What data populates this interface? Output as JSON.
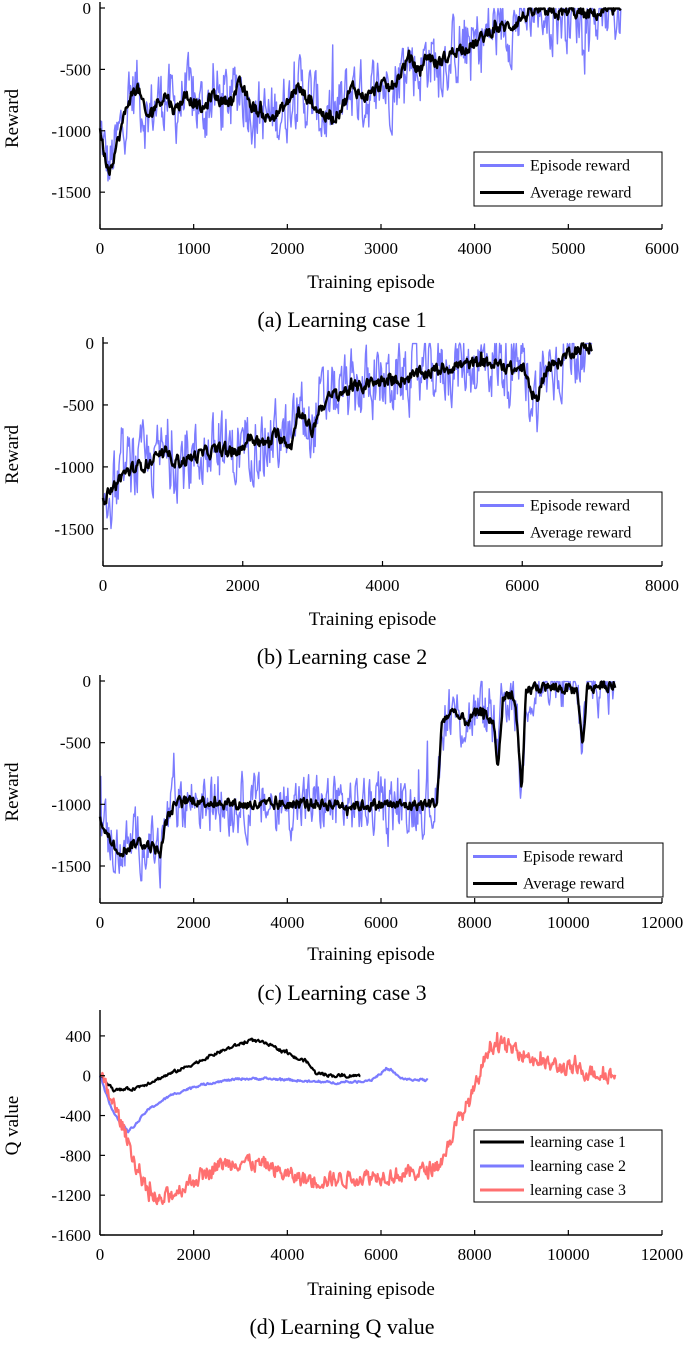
{
  "chart_data": [
    {
      "type": "line",
      "caption": "(a) Learning case 1",
      "xlabel": "Training episode",
      "ylabel": "Reward",
      "xlim": [
        0,
        6000
      ],
      "ylim": [
        -1800,
        0
      ],
      "xticks": [
        0,
        1000,
        2000,
        3000,
        4000,
        5000,
        6000
      ],
      "yticks": [
        0,
        -500,
        -1000,
        -1500
      ],
      "legend_position": "lower-right",
      "series": [
        {
          "name": "Episode reward",
          "color": "#7b7bff",
          "noise": 240,
          "x": [
            0,
            50,
            100,
            200,
            300,
            400,
            500,
            600,
            700,
            800,
            900,
            1000,
            1100,
            1200,
            1300,
            1400,
            1500,
            1600,
            1700,
            1800,
            1900,
            2000,
            2100,
            2200,
            2300,
            2400,
            2500,
            2600,
            2700,
            2800,
            2900,
            3000,
            3100,
            3200,
            3300,
            3400,
            3500,
            3600,
            3700,
            3800,
            3900,
            4000,
            4100,
            4200,
            4300,
            4400,
            4500,
            4600,
            4700,
            4800,
            4900,
            5000,
            5100,
            5200,
            5300,
            5400,
            5560
          ],
          "values": [
            -980,
            -1200,
            -1320,
            -1060,
            -760,
            -640,
            -900,
            -780,
            -700,
            -840,
            -720,
            -760,
            -840,
            -700,
            -760,
            -740,
            -620,
            -780,
            -850,
            -900,
            -860,
            -780,
            -640,
            -720,
            -800,
            -880,
            -900,
            -780,
            -640,
            -720,
            -700,
            -620,
            -660,
            -540,
            -400,
            -520,
            -380,
            -460,
            -400,
            -340,
            -320,
            -300,
            -230,
            -170,
            -160,
            -140,
            -80,
            -35,
            -25,
            -55,
            -45,
            -30,
            -40,
            -60,
            -45,
            -35,
            -25
          ]
        },
        {
          "name": "Average reward",
          "color": "#000000",
          "noise": 45,
          "x": [
            0,
            50,
            100,
            200,
            300,
            400,
            500,
            600,
            700,
            800,
            900,
            1000,
            1100,
            1200,
            1300,
            1400,
            1500,
            1600,
            1700,
            1800,
            1900,
            2000,
            2100,
            2200,
            2300,
            2400,
            2500,
            2600,
            2700,
            2800,
            2900,
            3000,
            3100,
            3200,
            3300,
            3400,
            3500,
            3600,
            3700,
            3800,
            3900,
            4000,
            4100,
            4200,
            4300,
            4400,
            4500,
            4600,
            4700,
            4800,
            4900,
            5000,
            5100,
            5200,
            5300,
            5400,
            5560
          ],
          "values": [
            -980,
            -1200,
            -1320,
            -1060,
            -760,
            -640,
            -900,
            -780,
            -700,
            -840,
            -720,
            -760,
            -840,
            -700,
            -760,
            -740,
            -620,
            -780,
            -850,
            -900,
            -860,
            -780,
            -640,
            -720,
            -800,
            -880,
            -900,
            -780,
            -640,
            -720,
            -700,
            -620,
            -660,
            -540,
            -400,
            -520,
            -380,
            -460,
            -400,
            -340,
            -320,
            -300,
            -230,
            -170,
            -160,
            -140,
            -80,
            -35,
            -25,
            -55,
            -45,
            -30,
            -40,
            -60,
            -45,
            -35,
            -25
          ]
        }
      ]
    },
    {
      "type": "line",
      "caption": "(b) Learning case 2",
      "xlabel": "Training episode",
      "ylabel": "Reward",
      "xlim": [
        0,
        8000
      ],
      "ylim": [
        -1800,
        0
      ],
      "xticks": [
        0,
        2000,
        4000,
        6000,
        8000
      ],
      "yticks": [
        0,
        -500,
        -1000,
        -1500
      ],
      "legend_position": "lower-right",
      "series": [
        {
          "name": "Episode reward",
          "color": "#7b7bff",
          "noise": 240,
          "x": [
            0,
            100,
            300,
            500,
            700,
            900,
            1100,
            1300,
            1500,
            1700,
            1900,
            2100,
            2300,
            2500,
            2700,
            2800,
            2900,
            3000,
            3100,
            3300,
            3500,
            3700,
            3900,
            4100,
            4300,
            4500,
            4700,
            4900,
            5100,
            5300,
            5500,
            5700,
            5900,
            6000,
            6100,
            6200,
            6300,
            6500,
            6700,
            7000
          ],
          "values": [
            -1250,
            -1200,
            -1050,
            -1000,
            -950,
            -900,
            -960,
            -920,
            -880,
            -860,
            -900,
            -760,
            -820,
            -740,
            -820,
            -520,
            -640,
            -720,
            -520,
            -420,
            -380,
            -350,
            -320,
            -300,
            -290,
            -260,
            -230,
            -200,
            -180,
            -170,
            -160,
            -180,
            -220,
            -190,
            -350,
            -470,
            -250,
            -160,
            -60,
            -25
          ]
        },
        {
          "name": "Average reward",
          "color": "#000000",
          "noise": 45,
          "x": [
            0,
            100,
            300,
            500,
            700,
            900,
            1100,
            1300,
            1500,
            1700,
            1900,
            2100,
            2300,
            2500,
            2700,
            2800,
            2900,
            3000,
            3100,
            3300,
            3500,
            3700,
            3900,
            4100,
            4300,
            4500,
            4700,
            4900,
            5100,
            5300,
            5500,
            5700,
            5900,
            6000,
            6100,
            6200,
            6300,
            6500,
            6700,
            7000
          ],
          "values": [
            -1250,
            -1200,
            -1050,
            -1000,
            -950,
            -900,
            -960,
            -920,
            -880,
            -860,
            -900,
            -760,
            -820,
            -740,
            -820,
            -520,
            -640,
            -720,
            -520,
            -420,
            -380,
            -350,
            -320,
            -300,
            -290,
            -260,
            -230,
            -200,
            -180,
            -170,
            -160,
            -180,
            -220,
            -190,
            -350,
            -470,
            -250,
            -160,
            -60,
            -25
          ]
        }
      ]
    },
    {
      "type": "line",
      "caption": "(c) Learning case 3",
      "xlabel": "Training episode",
      "ylabel": "Reward",
      "xlim": [
        0,
        12000
      ],
      "ylim": [
        -1800,
        0
      ],
      "xticks": [
        0,
        2000,
        4000,
        6000,
        8000,
        10000,
        12000
      ],
      "yticks": [
        0,
        -500,
        -1000,
        -1500
      ],
      "legend_position": "lower-right",
      "series": [
        {
          "name": "Episode reward",
          "color": "#7b7bff",
          "noise": 200,
          "x": [
            0,
            200,
            400,
            600,
            800,
            1000,
            1200,
            1300,
            1400,
            1600,
            2000,
            2500,
            3000,
            3500,
            4000,
            4500,
            5000,
            5500,
            6000,
            6500,
            7000,
            7200,
            7300,
            7500,
            7800,
            8000,
            8200,
            8400,
            8500,
            8600,
            8800,
            8900,
            9000,
            9100,
            9300,
            9500,
            9800,
            10000,
            10200,
            10300,
            10400,
            10600,
            11000
          ],
          "values": [
            -1100,
            -1280,
            -1380,
            -1350,
            -1300,
            -1330,
            -1360,
            -1400,
            -1150,
            -1000,
            -960,
            -990,
            -1000,
            -1010,
            -1000,
            -990,
            -1000,
            -1010,
            -1000,
            -1010,
            -1000,
            -980,
            -320,
            -260,
            -330,
            -280,
            -250,
            -350,
            -700,
            -150,
            -80,
            -300,
            -950,
            -80,
            -50,
            -50,
            -60,
            -60,
            -80,
            -550,
            -60,
            -40,
            -30
          ]
        },
        {
          "name": "Average reward",
          "color": "#000000",
          "noise": 40,
          "x": [
            0,
            200,
            400,
            600,
            800,
            1000,
            1200,
            1300,
            1400,
            1600,
            2000,
            2500,
            3000,
            3500,
            4000,
            4500,
            5000,
            5500,
            6000,
            6500,
            7000,
            7200,
            7300,
            7500,
            7800,
            8000,
            8200,
            8400,
            8500,
            8600,
            8800,
            8900,
            9000,
            9100,
            9300,
            9500,
            9800,
            10000,
            10200,
            10300,
            10400,
            10600,
            11000
          ],
          "values": [
            -1100,
            -1280,
            -1380,
            -1350,
            -1300,
            -1330,
            -1360,
            -1400,
            -1150,
            -1000,
            -960,
            -990,
            -1000,
            -1010,
            -1000,
            -990,
            -1000,
            -1010,
            -1000,
            -1010,
            -1000,
            -980,
            -320,
            -260,
            -330,
            -280,
            -250,
            -350,
            -700,
            -150,
            -80,
            -300,
            -950,
            -80,
            -50,
            -50,
            -60,
            -60,
            -80,
            -550,
            -60,
            -40,
            -30
          ]
        }
      ]
    },
    {
      "type": "line",
      "caption": "(d) Learning Q value",
      "xlabel": "Training episode",
      "ylabel": "Q value",
      "xlim": [
        0,
        12000
      ],
      "ylim": [
        -1600,
        600
      ],
      "xticks": [
        0,
        2000,
        4000,
        6000,
        8000,
        10000,
        12000
      ],
      "yticks": [
        400,
        0,
        -400,
        -800,
        -1200,
        -1600
      ],
      "legend_position": "lower-right",
      "series": [
        {
          "name": "learning case 1",
          "color": "#000000",
          "noise": 14,
          "x": [
            0,
            300,
            700,
            1000,
            1500,
            2000,
            2500,
            3000,
            3200,
            3500,
            4000,
            4200,
            4400,
            4600,
            5000,
            5560
          ],
          "values": [
            0,
            -150,
            -130,
            -80,
            20,
            120,
            230,
            320,
            360,
            330,
            230,
            170,
            150,
            30,
            0,
            0
          ]
        },
        {
          "name": "learning case 2",
          "color": "#7b7bff",
          "noise": 10,
          "x": [
            0,
            200,
            400,
            600,
            800,
            1000,
            1500,
            2000,
            2500,
            3000,
            3500,
            4000,
            4500,
            5000,
            5500,
            5800,
            6100,
            6200,
            6400,
            6600,
            7000
          ],
          "values": [
            0,
            -280,
            -450,
            -560,
            -470,
            -350,
            -200,
            -110,
            -60,
            -30,
            -30,
            -40,
            -60,
            -70,
            -60,
            -40,
            60,
            60,
            -20,
            -40,
            -40
          ]
        },
        {
          "name": "learning case 3",
          "color": "#ff7070",
          "noise": 70,
          "x": [
            0,
            300,
            600,
            800,
            1000,
            1200,
            1500,
            2000,
            2500,
            3000,
            3500,
            4000,
            4500,
            5000,
            5500,
            6000,
            6500,
            7000,
            7300,
            7600,
            8000,
            8300,
            8500,
            9000,
            9500,
            10000,
            10500,
            11000
          ],
          "values": [
            0,
            -300,
            -650,
            -950,
            -1150,
            -1280,
            -1200,
            -1050,
            -900,
            -850,
            -900,
            -1000,
            -1050,
            -1040,
            -1020,
            -1000,
            -990,
            -950,
            -850,
            -500,
            -150,
            300,
            320,
            230,
            120,
            70,
            40,
            0
          ]
        }
      ]
    }
  ]
}
